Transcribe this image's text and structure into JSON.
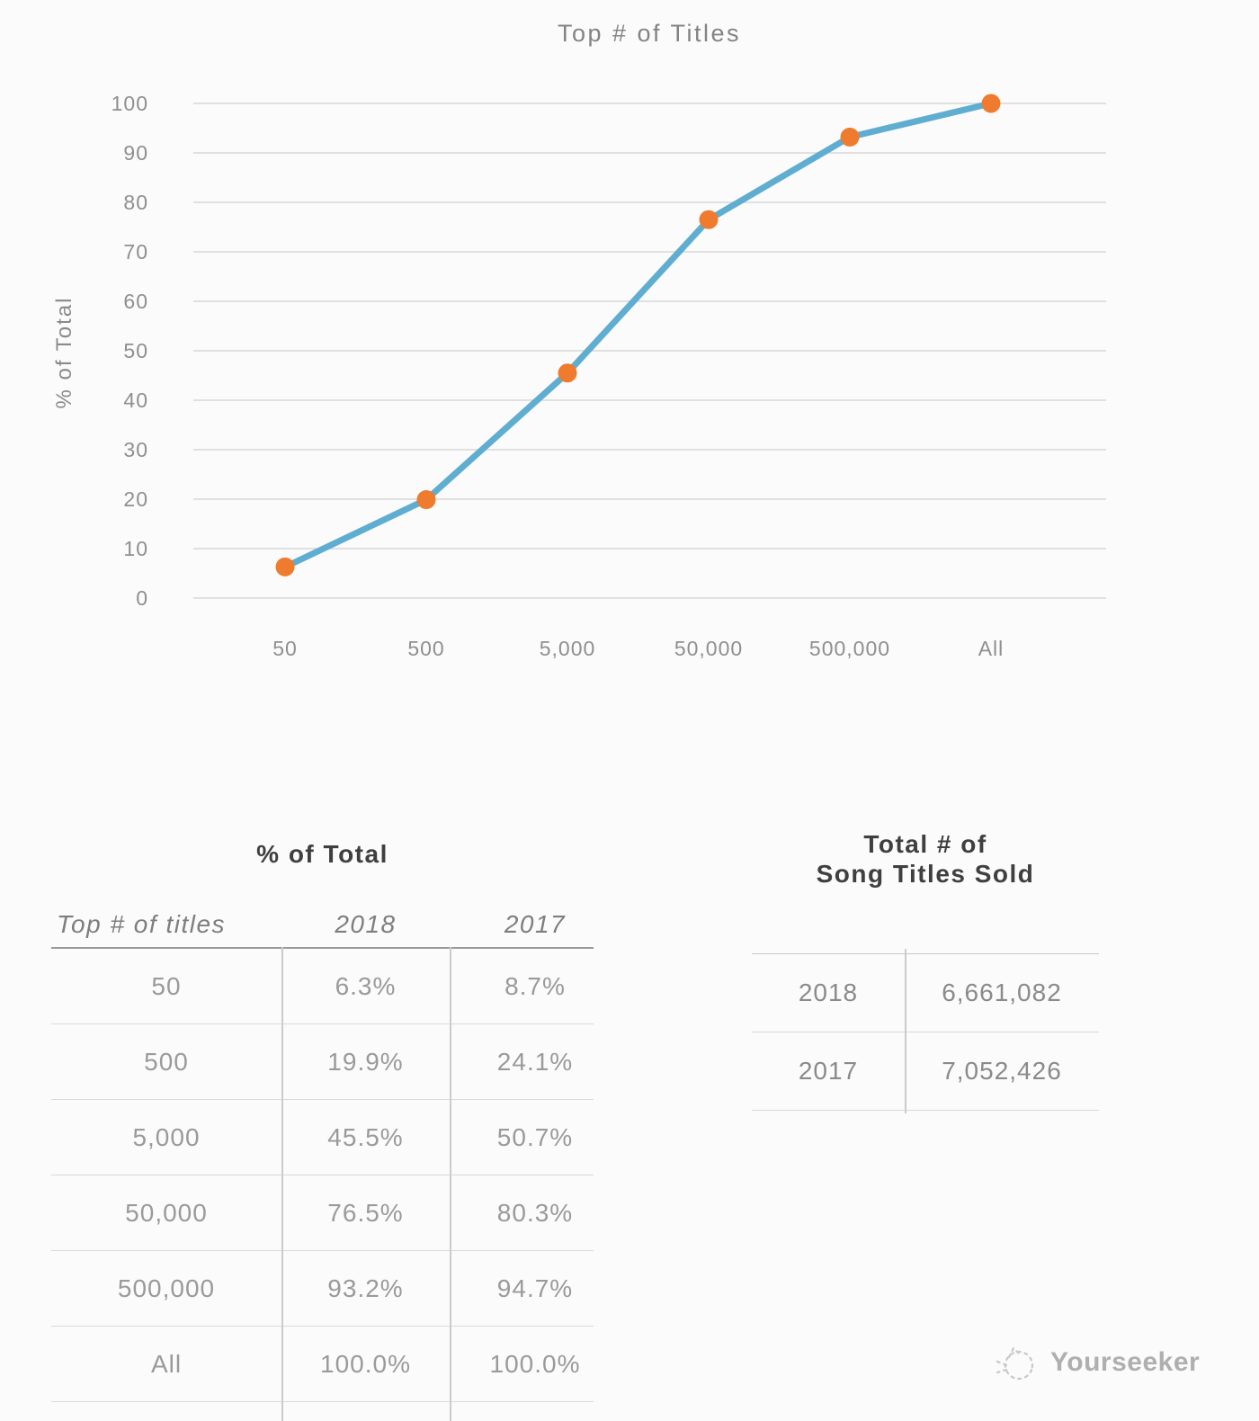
{
  "chart_data": {
    "type": "line",
    "title": "Top # of Titles",
    "xlabel": "",
    "ylabel": "% of Total",
    "categories": [
      "50",
      "500",
      "5,000",
      "50,000",
      "500,000",
      "All"
    ],
    "series": [
      {
        "name": "2018",
        "values": [
          6.3,
          19.9,
          45.5,
          76.5,
          93.2,
          100.0
        ]
      }
    ],
    "ylim": [
      0,
      100
    ],
    "yticks": [
      0,
      10,
      20,
      30,
      40,
      50,
      60,
      70,
      80,
      90,
      100
    ],
    "grid": "horizontal",
    "legend": "none",
    "colors": {
      "line": "#5FADD0",
      "marker": "#EE7B2E",
      "grid": "#D8D8D8",
      "axis_text": "#8F8F8F",
      "title_text": "#838383"
    }
  },
  "tables": {
    "percent": {
      "title": "% of Total",
      "columns": [
        "Top # of titles",
        "2018",
        "2017"
      ],
      "rows": [
        [
          "50",
          "6.3%",
          "8.7%"
        ],
        [
          "500",
          "19.9%",
          "24.1%"
        ],
        [
          "5,000",
          "45.5%",
          "50.7%"
        ],
        [
          "50,000",
          "76.5%",
          "80.3%"
        ],
        [
          "500,000",
          "93.2%",
          "94.7%"
        ],
        [
          "All",
          "100.0%",
          "100.0%"
        ]
      ]
    },
    "totals": {
      "title_line1": "Total # of",
      "title_line2": "Song Titles Sold",
      "rows": [
        [
          "2018",
          "6,661,082"
        ],
        [
          "2017",
          "7,052,426"
        ]
      ]
    }
  },
  "footer": {
    "brand": "Yourseeker"
  }
}
